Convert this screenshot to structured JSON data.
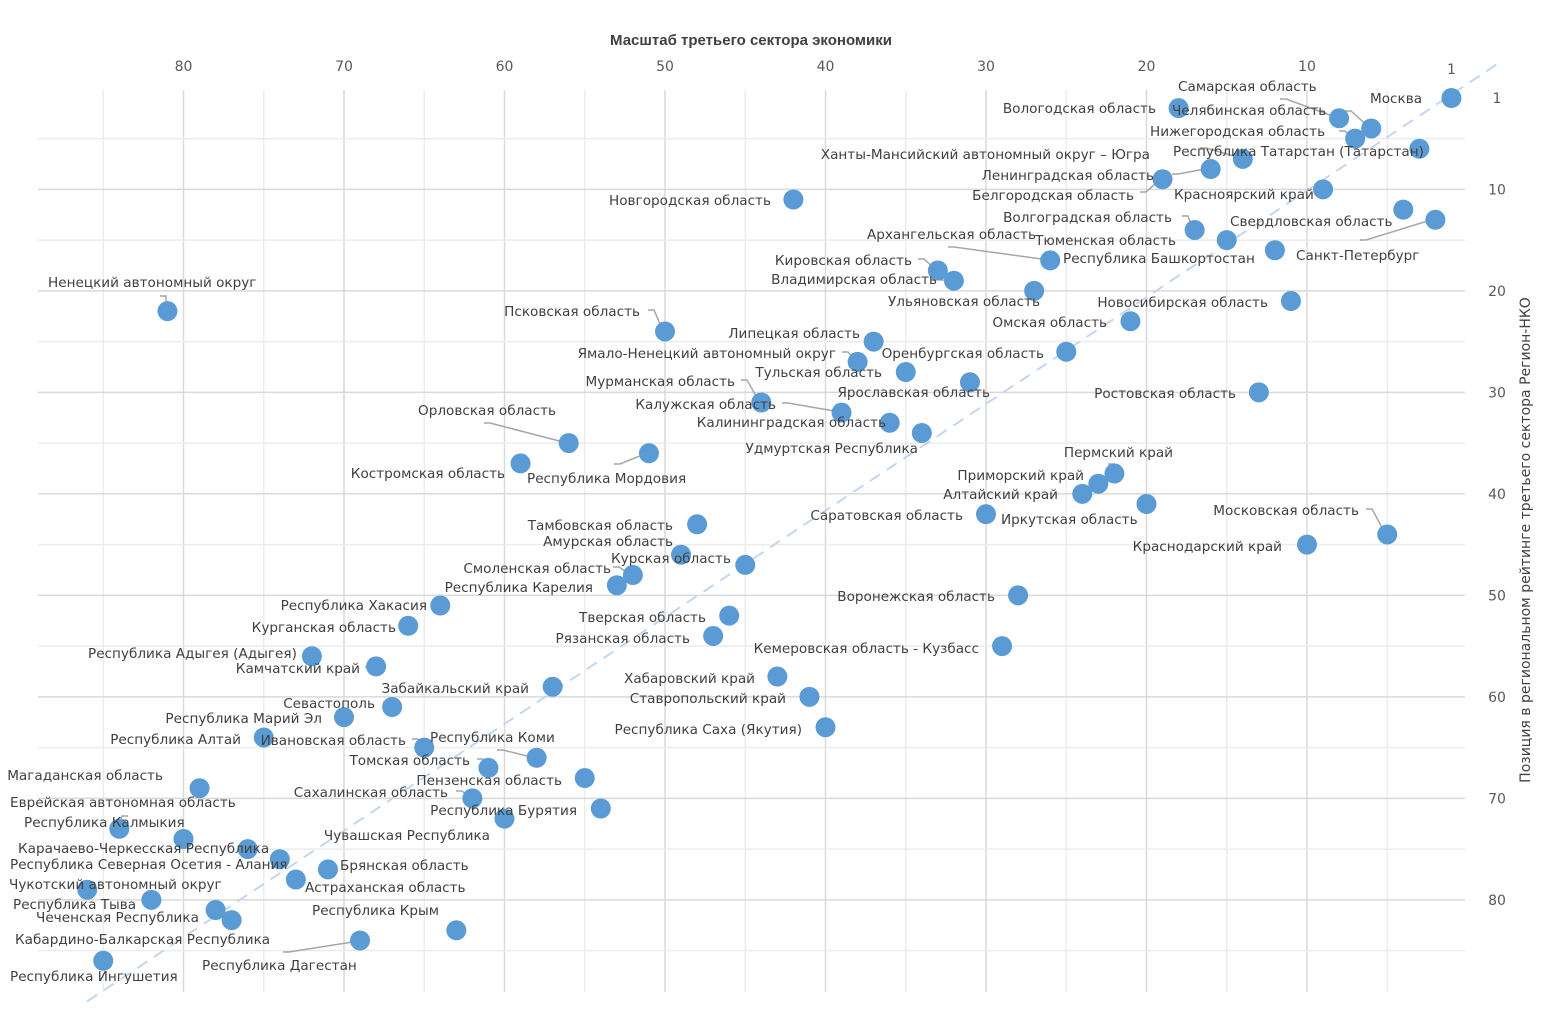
{
  "chart_data": {
    "type": "scatter",
    "title": "Масштаб третьего сектора экономики",
    "xlabel": "Масштаб третьего сектора экономики",
    "ylabel": "Позиция в региональном рейтинге третьего сектора Регион-НКО",
    "x_axis": {
      "position": "top",
      "reversed": true,
      "range": [
        1,
        86
      ],
      "ticks": [
        "80",
        "70",
        "60",
        "50",
        "40",
        "30",
        "20",
        "10",
        "1"
      ],
      "tick_values": [
        80,
        70,
        60,
        50,
        40,
        30,
        20,
        10,
        1
      ]
    },
    "y_axis": {
      "position": "right",
      "reversed": true,
      "range": [
        1,
        86
      ],
      "ticks": [
        "1",
        "10",
        "20",
        "30",
        "40",
        "50",
        "60",
        "70",
        "80"
      ],
      "tick_values": [
        1,
        10,
        20,
        30,
        40,
        50,
        60,
        70,
        80
      ]
    },
    "grid": true,
    "trendline": {
      "style": "dashed",
      "color": "#bdd3ee",
      "from": [
        86,
        90
      ],
      "to": [
        -2,
        -2.5
      ]
    },
    "marker_color": "#5b9bd5",
    "points": [
      {
        "name": "Москва",
        "x": 1,
        "y": 1
      },
      {
        "name": "Вологодская область",
        "x": 18,
        "y": 2
      },
      {
        "name": "Самарская область",
        "x": 8,
        "y": 3
      },
      {
        "name": "Челябинская область",
        "x": 6,
        "y": 4
      },
      {
        "name": "Нижегородская область",
        "x": 7,
        "y": 5
      },
      {
        "name": "Ханты-Мансийский автономный округ – Югра",
        "x": 3,
        "y": 6
      },
      {
        "name": "Республика Татарстан (Татарстан)",
        "x": 14,
        "y": 7
      },
      {
        "name": "Ленинградская область",
        "x": 16,
        "y": 8
      },
      {
        "name": "Белгородская область",
        "x": 19,
        "y": 9
      },
      {
        "name": "Красноярский край",
        "x": 9,
        "y": 10
      },
      {
        "name": "Новгородская область",
        "x": 42,
        "y": 11
      },
      {
        "name": "Свердловская область",
        "x": 4,
        "y": 12
      },
      {
        "name": "Санкт-Петербург",
        "x": 2,
        "y": 13
      },
      {
        "name": "Волгоградская область",
        "x": 17,
        "y": 14
      },
      {
        "name": "Тюменская область",
        "x": 15,
        "y": 15
      },
      {
        "name": "Республика Башкортостан",
        "x": 12,
        "y": 16
      },
      {
        "name": "Архангельская область",
        "x": 26,
        "y": 17
      },
      {
        "name": "Кировская область",
        "x": 33,
        "y": 18
      },
      {
        "name": "Владимирская область",
        "x": 32,
        "y": 19
      },
      {
        "name": "Ульяновская область",
        "x": 27,
        "y": 20
      },
      {
        "name": "Новосибирская область",
        "x": 11,
        "y": 21
      },
      {
        "name": "Ненецкий автономный округ",
        "x": 81,
        "y": 22
      },
      {
        "name": "Омская область",
        "x": 21,
        "y": 23
      },
      {
        "name": "Псковская область",
        "x": 50,
        "y": 24
      },
      {
        "name": "Липецкая область",
        "x": 37,
        "y": 25
      },
      {
        "name": "Оренбургская область",
        "x": 25,
        "y": 26
      },
      {
        "name": "Ямало-Ненецкий автономный округ",
        "x": 38,
        "y": 27
      },
      {
        "name": "Тульская область",
        "x": 35,
        "y": 28
      },
      {
        "name": "Ярославская область",
        "x": 31,
        "y": 29
      },
      {
        "name": "Ростовская область",
        "x": 13,
        "y": 30
      },
      {
        "name": "Мурманская область",
        "x": 44,
        "y": 31
      },
      {
        "name": "Калужская область",
        "x": 39,
        "y": 32
      },
      {
        "name": "Калининградская область",
        "x": 36,
        "y": 33
      },
      {
        "name": "Удмуртская Республика",
        "x": 34,
        "y": 34
      },
      {
        "name": "Орловская область",
        "x": 56,
        "y": 35
      },
      {
        "name": "Республика Мордовия",
        "x": 51,
        "y": 36
      },
      {
        "name": "Костромская область",
        "x": 59,
        "y": 37
      },
      {
        "name": "Пермский край",
        "x": 22,
        "y": 38
      },
      {
        "name": "Приморский край",
        "x": 23,
        "y": 39
      },
      {
        "name": "Алтайский край",
        "x": 24,
        "y": 40
      },
      {
        "name": "Иркутская область",
        "x": 20,
        "y": 41
      },
      {
        "name": "Саратовская область",
        "x": 30,
        "y": 42
      },
      {
        "name": "Тамбовская область",
        "x": 48,
        "y": 43
      },
      {
        "name": "Московская область",
        "x": 5,
        "y": 44
      },
      {
        "name": "Краснодарский край",
        "x": 10,
        "y": 45
      },
      {
        "name": "Амурская область",
        "x": 49,
        "y": 46
      },
      {
        "name": "Курская область",
        "x": 45,
        "y": 47
      },
      {
        "name": "Смоленская область",
        "x": 52,
        "y": 48
      },
      {
        "name": "Республика Карелия",
        "x": 53,
        "y": 49
      },
      {
        "name": "Воронежская область",
        "x": 28,
        "y": 50
      },
      {
        "name": "Республика Хакасия",
        "x": 64,
        "y": 51
      },
      {
        "name": "Тверская область",
        "x": 46,
        "y": 52
      },
      {
        "name": "Курганская область",
        "x": 66,
        "y": 53
      },
      {
        "name": "Рязанская область",
        "x": 47,
        "y": 54
      },
      {
        "name": "Кемеровская область - Кузбасс",
        "x": 29,
        "y": 55
      },
      {
        "name": "Республика Адыгея (Адыгея)",
        "x": 72,
        "y": 56
      },
      {
        "name": "Камчатский край",
        "x": 68,
        "y": 57
      },
      {
        "name": "Хабаровский край",
        "x": 43,
        "y": 58
      },
      {
        "name": "Забайкальский край",
        "x": 57,
        "y": 59
      },
      {
        "name": "Ставропольский край",
        "x": 41,
        "y": 60
      },
      {
        "name": "Севастополь",
        "x": 67,
        "y": 61
      },
      {
        "name": "Республика Марий Эл",
        "x": 70,
        "y": 62
      },
      {
        "name": "Республика Саха (Якутия)",
        "x": 40,
        "y": 63
      },
      {
        "name": "Республика Алтай",
        "x": 75,
        "y": 64
      },
      {
        "name": "Ивановская область",
        "x": 65,
        "y": 65
      },
      {
        "name": "Республика Коми",
        "x": 58,
        "y": 66
      },
      {
        "name": "Томская область",
        "x": 61,
        "y": 67
      },
      {
        "name": "Пензенская область",
        "x": 55,
        "y": 68
      },
      {
        "name": "Магаданская область",
        "x": 79,
        "y": 69
      },
      {
        "name": "Сахалинская область",
        "x": 62,
        "y": 70
      },
      {
        "name": "Республика Бурятия",
        "x": 54,
        "y": 71
      },
      {
        "name": "Чувашская Республика",
        "x": 60,
        "y": 72
      },
      {
        "name": "Республика Калмыкия",
        "x": 84,
        "y": 73
      },
      {
        "name": "Еврейская автономная область",
        "x": 80,
        "y": 74
      },
      {
        "name": "Карачаево-Черкесская Республика",
        "x": 76,
        "y": 75
      },
      {
        "name": "Республика Северная Осетия - Алания",
        "x": 74,
        "y": 76
      },
      {
        "name": "Брянская область",
        "x": 71,
        "y": 77
      },
      {
        "name": "Астраханская область",
        "x": 73,
        "y": 78
      },
      {
        "name": "Чукотский автономный округ",
        "x": 86,
        "y": 79
      },
      {
        "name": "Республика Тыва",
        "x": 82,
        "y": 80
      },
      {
        "name": "Чеченская Республика",
        "x": 78,
        "y": 81
      },
      {
        "name": "Кабардино-Балкарская Республика",
        "x": 77,
        "y": 82
      },
      {
        "name": "Республика Крым",
        "x": 63,
        "y": 83
      },
      {
        "name": "Республика Дагестан",
        "x": 69,
        "y": 84
      },
      {
        "name": "Республика Ингушетия",
        "x": 85,
        "y": 86
      }
    ]
  }
}
